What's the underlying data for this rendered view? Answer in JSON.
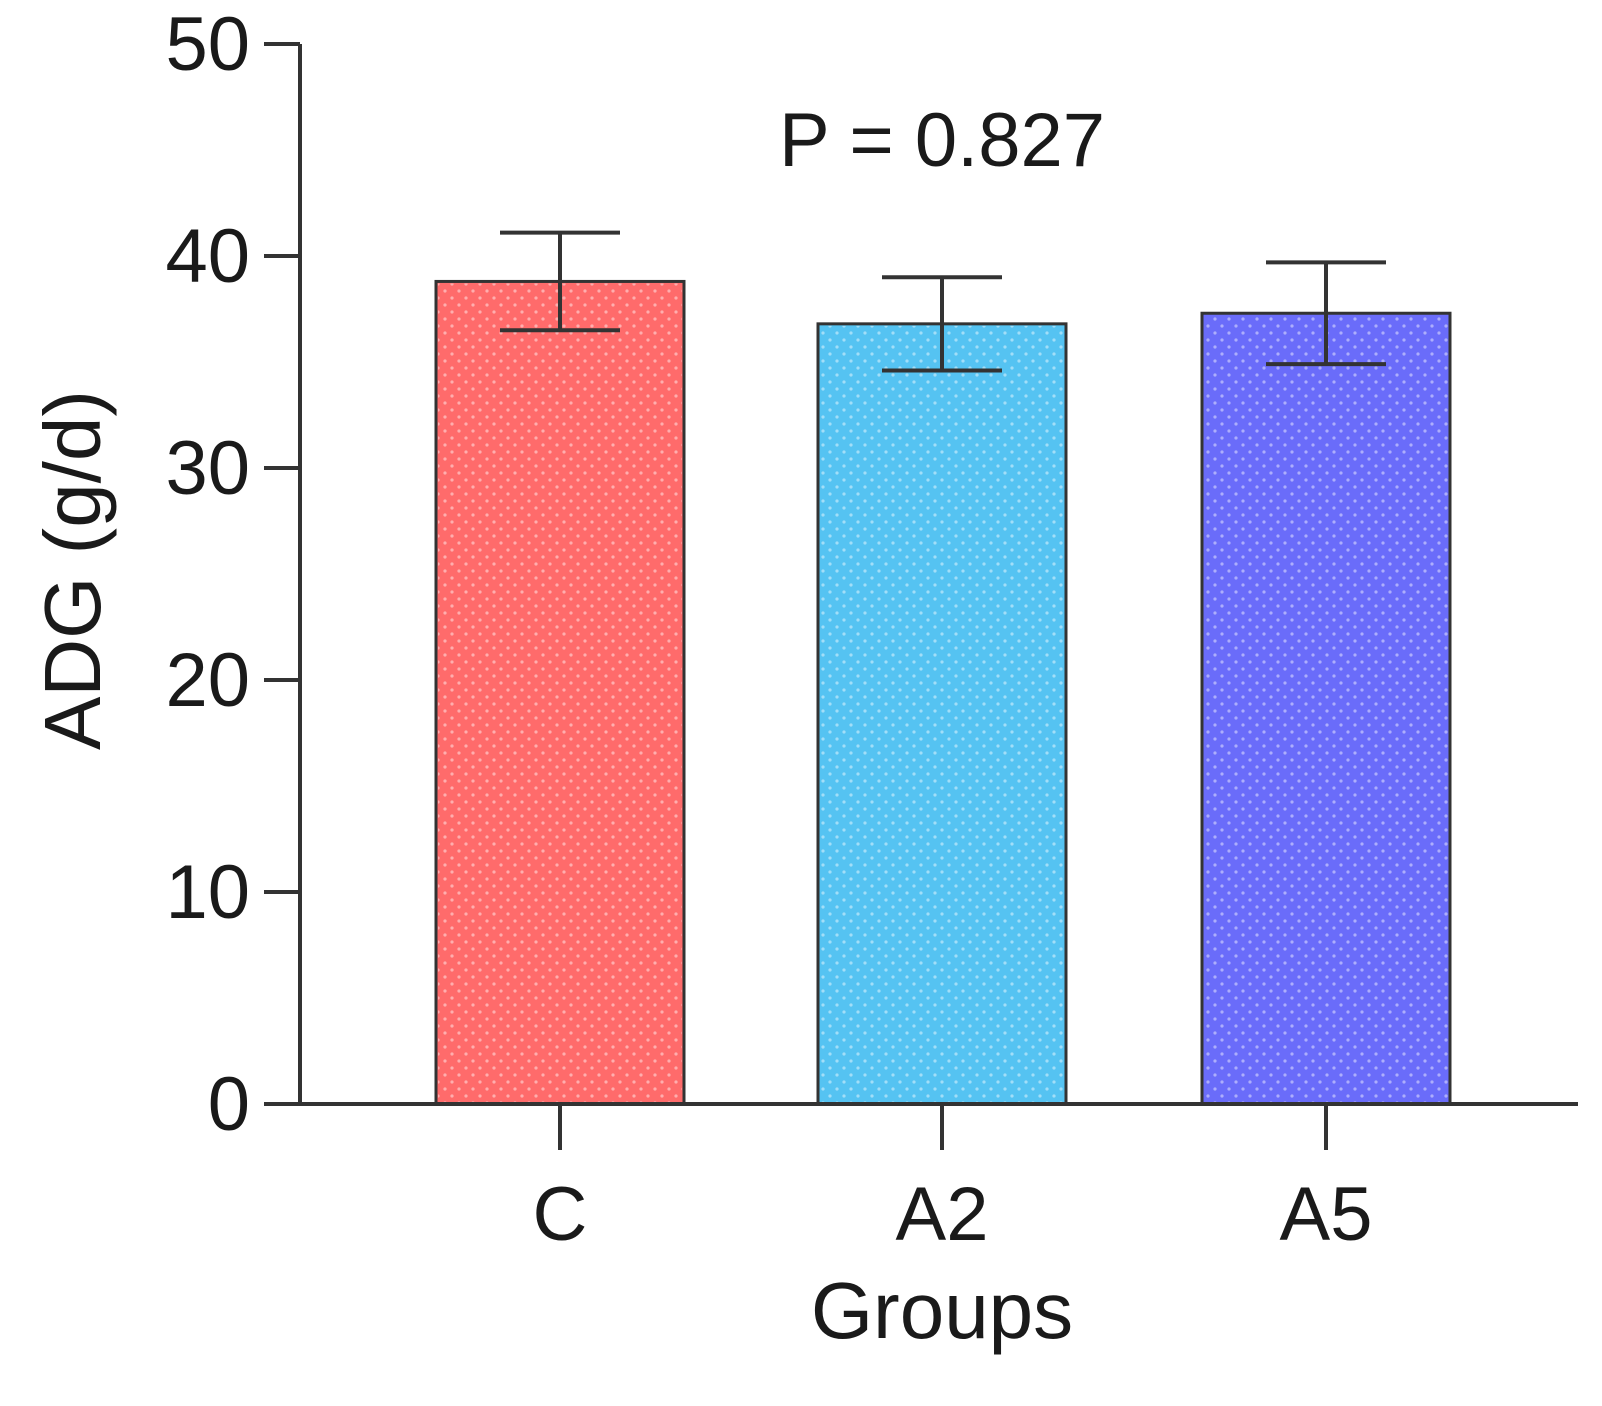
{
  "chart_data": {
    "type": "bar",
    "categories": [
      "C",
      "A2",
      "A5"
    ],
    "values": [
      38.8,
      36.8,
      37.3
    ],
    "error": [
      2.3,
      2.2,
      2.4
    ],
    "colors": [
      "#ff6b6b",
      "#55c3f2",
      "#6a6cfa"
    ],
    "xlabel": "Groups",
    "ylabel": "ADG (g/d)",
    "ylim": [
      0,
      50
    ],
    "yticks": [
      0,
      10,
      20,
      30,
      40,
      50
    ],
    "annotation": "P = 0.827",
    "grid": false,
    "legend": "none"
  }
}
